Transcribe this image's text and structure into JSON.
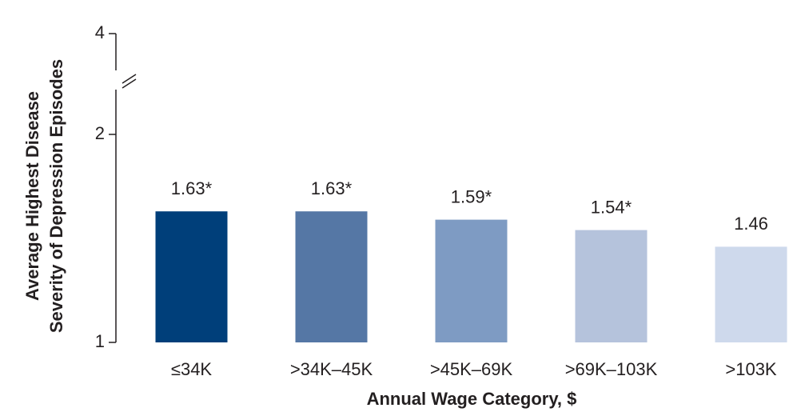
{
  "chart_data": {
    "type": "bar",
    "ylabel": [
      "Average Highest Disease",
      "Severity of Depression Episodes"
    ],
    "xlabel": "Annual Wage Category, $",
    "categories": [
      "≤34K",
      ">34K–45K",
      ">45K–69K",
      ">69K–103K",
      ">103K"
    ],
    "values": [
      1.63,
      1.63,
      1.59,
      1.54,
      1.46
    ],
    "value_labels": [
      "1.63*",
      "1.63*",
      "1.59*",
      "1.54*",
      "1.46"
    ],
    "colors": [
      "#003f7a",
      "#5577a5",
      "#7e9bc3",
      "#b5c3dc",
      "#ced9ec"
    ],
    "ylim": [
      1,
      4
    ],
    "yticks": [
      1,
      2,
      4
    ],
    "axis_break": true
  }
}
